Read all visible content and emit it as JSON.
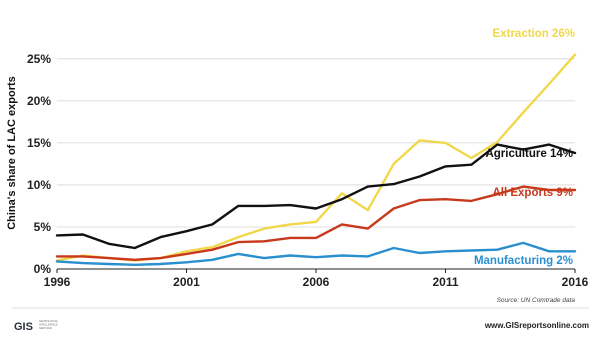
{
  "chart_data": {
    "type": "line",
    "ylabel": "China's share of LAC exports",
    "x": [
      1996,
      1997,
      1998,
      1999,
      2000,
      2001,
      2002,
      2003,
      2004,
      2005,
      2006,
      2007,
      2008,
      2009,
      2010,
      2011,
      2012,
      2013,
      2014,
      2015,
      2016
    ],
    "xticks": [
      "1996",
      "2001",
      "2006",
      "2011",
      "2016"
    ],
    "xlim": [
      1996,
      2016
    ],
    "ylim": [
      0,
      27
    ],
    "yticks": [
      "0%",
      "5%",
      "10%",
      "15%",
      "20%",
      "25%"
    ],
    "grid": true,
    "series": [
      {
        "name": "Extraction",
        "label": "Extraction 26%",
        "color": "#f0d84a",
        "values": [
          1.0,
          1.6,
          1.3,
          1.0,
          1.3,
          2.1,
          2.6,
          3.8,
          4.8,
          5.3,
          5.6,
          9.0,
          7.0,
          12.5,
          15.3,
          15.0,
          13.2,
          15.1,
          18.6,
          22.0,
          25.5
        ]
      },
      {
        "name": "Agriculture",
        "label": "Agriculture 14%",
        "color": "#111111",
        "values": [
          4.0,
          4.1,
          3.0,
          2.5,
          3.8,
          4.5,
          5.3,
          7.5,
          7.5,
          7.6,
          7.2,
          8.3,
          9.8,
          10.1,
          11.0,
          12.2,
          12.4,
          14.8,
          14.2,
          14.8,
          13.8
        ]
      },
      {
        "name": "All Exports",
        "label": "All Exports 9%",
        "color": "#c8391b",
        "values": [
          1.5,
          1.5,
          1.3,
          1.1,
          1.3,
          1.8,
          2.3,
          3.2,
          3.3,
          3.7,
          3.7,
          5.3,
          4.8,
          7.2,
          8.2,
          8.3,
          8.1,
          8.9,
          9.8,
          9.4,
          9.4
        ]
      },
      {
        "name": "Manufacturing",
        "label": "Manufacturing 2%",
        "color": "#2a8fcf",
        "values": [
          0.9,
          0.7,
          0.6,
          0.5,
          0.6,
          0.8,
          1.1,
          1.8,
          1.3,
          1.6,
          1.4,
          1.6,
          1.5,
          2.5,
          1.9,
          2.1,
          2.2,
          2.3,
          3.1,
          2.1,
          2.1
        ]
      }
    ],
    "source": "Source: UN Comtrade data"
  },
  "footer": {
    "logo": "GIS",
    "logo_sub": [
      "GEOPOLITICAL",
      "INTELLIGENCE",
      "SERVICES"
    ],
    "url": "www.GISreportsonline.com"
  }
}
